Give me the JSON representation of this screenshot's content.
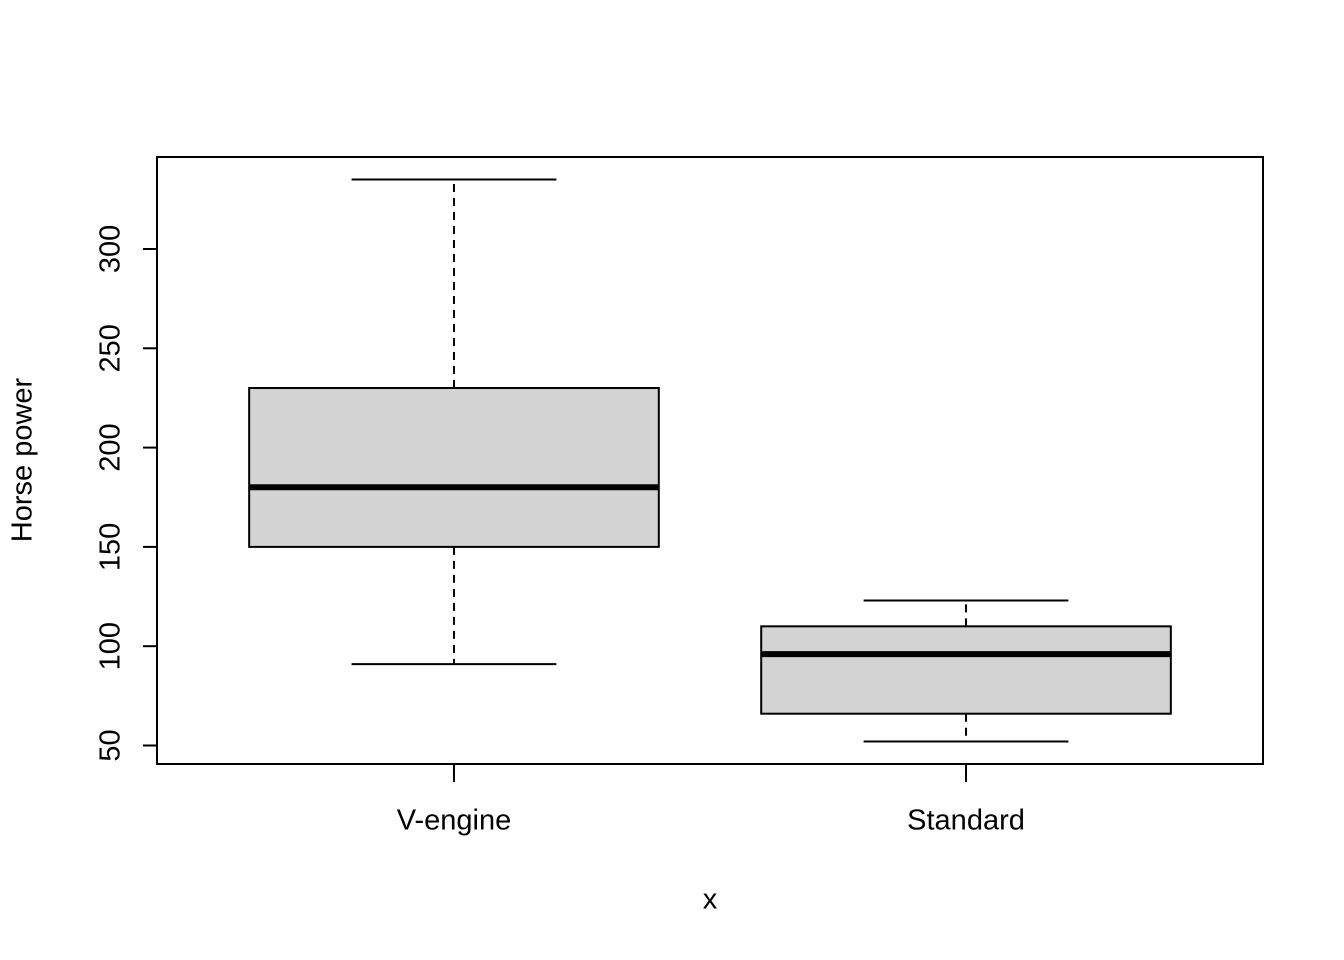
{
  "chart_data": {
    "type": "box",
    "categories": [
      "V-engine",
      "Standard"
    ],
    "min": [
      91,
      52
    ],
    "q1": [
      150,
      66
    ],
    "median": [
      180,
      96
    ],
    "q3": [
      230,
      110
    ],
    "max": [
      335,
      123
    ],
    "color": "#d3d3d3",
    "xlabel": "x",
    "ylabel": "Horse power",
    "xlim": [
      0.42,
      2.58
    ],
    "ylim": [
      40.68,
      346.32
    ],
    "yticks": [
      50,
      100,
      150,
      200,
      250,
      300
    ]
  }
}
